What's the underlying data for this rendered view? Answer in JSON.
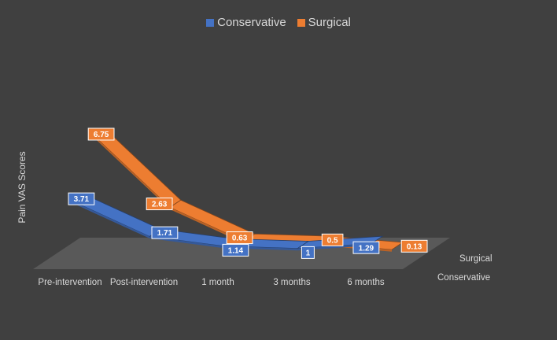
{
  "chart_data": {
    "type": "line",
    "style": "3d-ribbon",
    "categories": [
      "Pre-intervention",
      "Post-intervention",
      "1 month",
      "3 months",
      "6 months"
    ],
    "series": [
      {
        "name": "Conservative",
        "color": "#4472C4",
        "values": [
          3.71,
          1.71,
          1.14,
          1,
          1.29
        ]
      },
      {
        "name": "Surgical",
        "color": "#ED7D31",
        "values": [
          6.75,
          2.63,
          0.63,
          0.5,
          0.13
        ]
      }
    ],
    "depth_labels": [
      "Surgical",
      "Conservative"
    ],
    "title": "",
    "xlabel": "",
    "ylabel": "Pain VAS Scores",
    "legend_position": "top"
  }
}
